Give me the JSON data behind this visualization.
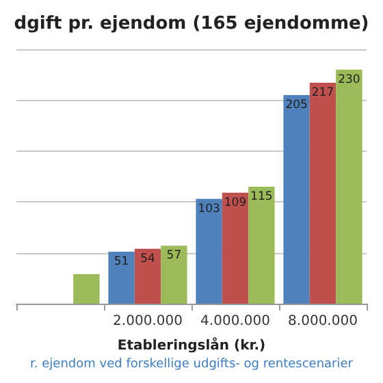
{
  "chart_data": {
    "type": "bar",
    "title": "dgift pr. ejendom (165 ejendomme)",
    "xlabel": "Etableringslån (kr.)",
    "categories": [
      null,
      "2.000.000",
      "4.000.000",
      "8.000.000"
    ],
    "series": [
      {
        "color": "#4f81bd",
        "values": [
          null,
          51,
          103,
          205
        ],
        "value_labels": [
          null,
          "51",
          "103",
          "205"
        ]
      },
      {
        "color": "#c0504d",
        "values": [
          null,
          54,
          109,
          217
        ],
        "value_labels": [
          null,
          "54",
          "109",
          "217"
        ]
      },
      {
        "color": "#9bbb59",
        "values": [
          29,
          57,
          115,
          230
        ],
        "value_labels": [
          null,
          "57",
          "115",
          "230"
        ]
      }
    ],
    "ylim": [
      0,
      250
    ],
    "yticks": [
      {
        "value": 0,
        "label": null
      },
      {
        "value": 50,
        "label": null
      },
      {
        "value": 100,
        "label": null
      },
      {
        "value": 150,
        "label": null
      },
      {
        "value": 200,
        "label": null
      },
      {
        "value": 250,
        "label": null
      }
    ],
    "tick_labels": "x",
    "grid": "y",
    "annotations": [
      "r. ejendom ved forskellige udgifts- og rentescenarier"
    ]
  }
}
